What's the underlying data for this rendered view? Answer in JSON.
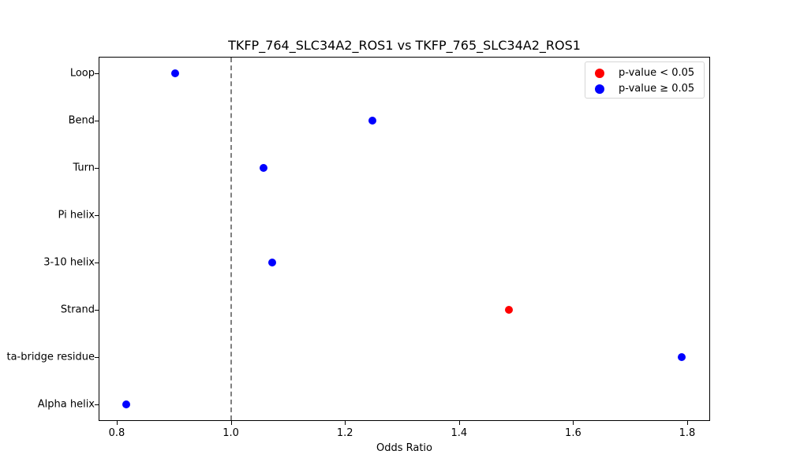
{
  "chart_data": {
    "type": "scatter",
    "title": "TKFP_764_SLC34A2_ROS1 vs TKFP_765_SLC34A2_ROS1",
    "xlabel": "Odds Ratio",
    "ylabel": "",
    "xlim": [
      0.77,
      1.84
    ],
    "xticks": [
      0.8,
      1.0,
      1.2,
      1.4,
      1.6,
      1.8
    ],
    "xtick_labels": [
      "0.8",
      "1.0",
      "1.2",
      "1.4",
      "1.6",
      "1.8"
    ],
    "categories": [
      "Loop",
      "Bend",
      "Turn",
      "Pi helix",
      "3-10 helix",
      "Strand",
      "Isolated beta-bridge residue",
      "Alpha helix"
    ],
    "ytick_labels_visible": [
      "Loop",
      "Bend",
      "Turn",
      "Pi helix",
      "3-10 helix",
      "Strand",
      "ta-bridge residue",
      "Alpha helix"
    ],
    "values": [
      0.902,
      1.248,
      1.057,
      null,
      1.072,
      1.488,
      1.79,
      0.817
    ],
    "significant": [
      false,
      false,
      false,
      null,
      false,
      true,
      false,
      false
    ],
    "reference_line": {
      "x": 1.0,
      "style": "dashed",
      "color": "#808080"
    },
    "legend": {
      "position": "upper right",
      "entries": [
        {
          "label": "p-value < 0.05",
          "color": "#ff0000"
        },
        {
          "label": "p-value ≥ 0.05",
          "color": "#0000ff"
        }
      ]
    },
    "grid": false
  },
  "colors": {
    "significant": "#ff0000",
    "not_significant": "#0000ff"
  }
}
